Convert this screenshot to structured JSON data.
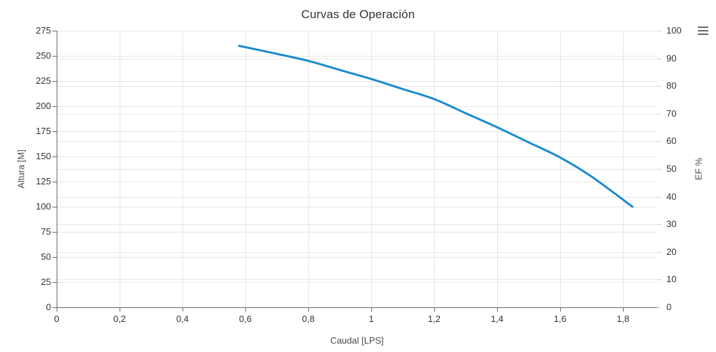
{
  "header": {
    "title": "Curvas de Operación"
  },
  "toolbar": {
    "context_menu_icon": "hamburger-icon"
  },
  "chart_data": {
    "type": "line",
    "title": "Curvas de Operación",
    "xlabel": "Caudal [LPS]",
    "ylabel_left": "Altura [M]",
    "ylabel_right": "EF %",
    "xlim": [
      0,
      1.909
    ],
    "ylim_left": [
      0,
      275
    ],
    "ylim_right": [
      0,
      100
    ],
    "x_ticks": [
      {
        "value": 0,
        "label": "0"
      },
      {
        "value": 0.2,
        "label": "0,2"
      },
      {
        "value": 0.4,
        "label": "0,4"
      },
      {
        "value": 0.6,
        "label": "0,6"
      },
      {
        "value": 0.8,
        "label": "0,8"
      },
      {
        "value": 1,
        "label": "1"
      },
      {
        "value": 1.2,
        "label": "1,2"
      },
      {
        "value": 1.4,
        "label": "1,4"
      },
      {
        "value": 1.6,
        "label": "1,6"
      },
      {
        "value": 1.8,
        "label": "1,8"
      }
    ],
    "y_ticks_left": [
      {
        "value": 0,
        "label": "0"
      },
      {
        "value": 25,
        "label": "25"
      },
      {
        "value": 50,
        "label": "50"
      },
      {
        "value": 75,
        "label": "75"
      },
      {
        "value": 100,
        "label": "100"
      },
      {
        "value": 125,
        "label": "125"
      },
      {
        "value": 150,
        "label": "150"
      },
      {
        "value": 175,
        "label": "175"
      },
      {
        "value": 200,
        "label": "200"
      },
      {
        "value": 225,
        "label": "225"
      },
      {
        "value": 250,
        "label": "250"
      },
      {
        "value": 275,
        "label": "275"
      }
    ],
    "y_ticks_right": [
      {
        "value": 0,
        "label": "0"
      },
      {
        "value": 10,
        "label": "10"
      },
      {
        "value": 20,
        "label": "20"
      },
      {
        "value": 30,
        "label": "30"
      },
      {
        "value": 40,
        "label": "40"
      },
      {
        "value": 50,
        "label": "50"
      },
      {
        "value": 60,
        "label": "60"
      },
      {
        "value": 70,
        "label": "70"
      },
      {
        "value": 80,
        "label": "80"
      },
      {
        "value": 90,
        "label": "90"
      },
      {
        "value": 100,
        "label": "100"
      }
    ],
    "grid": true,
    "legend": "none",
    "series": [
      {
        "name": "Altura",
        "axis": "left",
        "color": "#1b8bd1",
        "line_width": 3,
        "points": [
          [
            0.58,
            260
          ],
          [
            0.7,
            252
          ],
          [
            0.8,
            245
          ],
          [
            0.9,
            236
          ],
          [
            1.0,
            227
          ],
          [
            1.1,
            217
          ],
          [
            1.2,
            207
          ],
          [
            1.3,
            193
          ],
          [
            1.4,
            179
          ],
          [
            1.5,
            164
          ],
          [
            1.6,
            149
          ],
          [
            1.7,
            130
          ],
          [
            1.83,
            100
          ]
        ]
      }
    ],
    "colors": {
      "grid_line": "#e6e6e6",
      "axis_line": "#666666",
      "tick_mark": "#666666",
      "right_tick_mark": "#cccccc",
      "tick_label": "#333333",
      "axis_title": "#4d4d4d",
      "title": "#333333",
      "background": "#ffffff"
    }
  }
}
